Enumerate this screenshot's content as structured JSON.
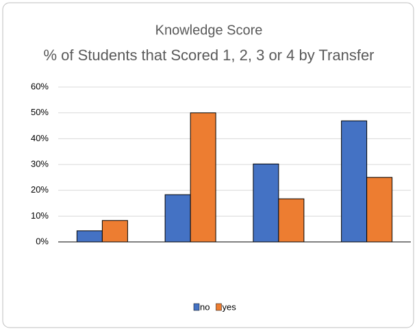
{
  "chart_data": {
    "type": "bar",
    "title": [
      "Knowledge Score",
      "% of Students that Scored 1, 2, 3 or 4 by Transfer"
    ],
    "categories": [
      null,
      null,
      null,
      null
    ],
    "series": [
      {
        "name": "no",
        "color": "#4472c4",
        "values": [
          4.3,
          18.3,
          30.2,
          46.9
        ]
      },
      {
        "name": "yes",
        "color": "#ed7d31",
        "values": [
          8.3,
          50,
          16.7,
          25
        ]
      }
    ],
    "ylim": [
      0,
      60
    ],
    "yticks": [
      {
        "value": 0,
        "label": "0%"
      },
      {
        "value": 10,
        "label": "10%"
      },
      {
        "value": 20,
        "label": "20%"
      },
      {
        "value": 30,
        "label": "30%"
      },
      {
        "value": 40,
        "label": "40%"
      },
      {
        "value": 50,
        "label": "50%"
      },
      {
        "value": 60,
        "label": "60%"
      }
    ],
    "grid": true,
    "legend": "bottom"
  }
}
